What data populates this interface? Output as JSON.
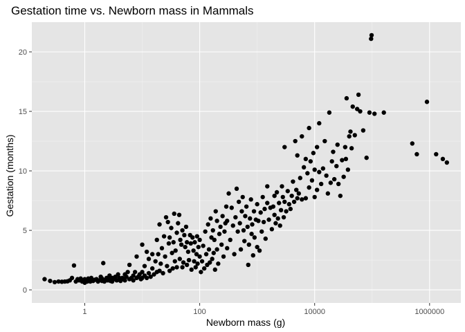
{
  "chart_data": {
    "type": "scatter",
    "title": "Gestation time vs. Newborn mass in Mammals",
    "xlabel": "Newborn mass (g)",
    "ylabel": "Gestation (months)",
    "x_scale": "log10",
    "xlim": [
      0.12,
      3500000
    ],
    "ylim": [
      -1.1,
      22.5
    ],
    "x_ticks": [
      {
        "value": 1,
        "label": "1"
      },
      {
        "value": 100,
        "label": "100"
      },
      {
        "value": 10000,
        "label": "10000"
      },
      {
        "value": 1000000,
        "label": "1000000"
      }
    ],
    "y_ticks": [
      {
        "value": 0,
        "label": "0"
      },
      {
        "value": 5,
        "label": "5"
      },
      {
        "value": 10,
        "label": "10"
      },
      {
        "value": 15,
        "label": "15"
      },
      {
        "value": 20,
        "label": "20"
      }
    ],
    "grid": true,
    "colors": {
      "panel": "#e5e5e5",
      "grid_major": "#ffffff",
      "grid_minor": "#f2f2f2",
      "point": "#000000"
    },
    "points": [
      [
        0.2,
        0.9
      ],
      [
        0.25,
        0.75
      ],
      [
        0.3,
        0.65
      ],
      [
        0.35,
        0.7
      ],
      [
        0.4,
        0.68
      ],
      [
        0.45,
        0.7
      ],
      [
        0.5,
        0.72
      ],
      [
        0.55,
        0.8
      ],
      [
        0.6,
        1.0
      ],
      [
        0.65,
        2.05
      ],
      [
        0.7,
        0.7
      ],
      [
        0.75,
        0.9
      ],
      [
        0.8,
        0.8
      ],
      [
        0.85,
        0.95
      ],
      [
        0.9,
        0.7
      ],
      [
        0.95,
        0.75
      ],
      [
        1.0,
        0.6
      ],
      [
        1.0,
        0.9
      ],
      [
        1.05,
        0.8
      ],
      [
        1.1,
        0.7
      ],
      [
        1.15,
        0.95
      ],
      [
        1.2,
        0.85
      ],
      [
        1.25,
        0.7
      ],
      [
        1.3,
        1.0
      ],
      [
        1.4,
        0.75
      ],
      [
        1.5,
        0.85
      ],
      [
        1.6,
        0.9
      ],
      [
        1.7,
        0.7
      ],
      [
        1.8,
        0.8
      ],
      [
        1.9,
        1.1
      ],
      [
        2.0,
        0.75
      ],
      [
        2.0,
        0.95
      ],
      [
        2.1,
        2.25
      ],
      [
        2.2,
        0.7
      ],
      [
        2.3,
        0.85
      ],
      [
        2.4,
        1.0
      ],
      [
        2.5,
        0.8
      ],
      [
        2.6,
        0.9
      ],
      [
        2.7,
        1.2
      ],
      [
        2.8,
        0.75
      ],
      [
        2.9,
        0.85
      ],
      [
        3.0,
        1.0
      ],
      [
        3.0,
        0.7
      ],
      [
        3.2,
        0.9
      ],
      [
        3.4,
        1.1
      ],
      [
        3.6,
        0.8
      ],
      [
        3.8,
        1.3
      ],
      [
        4.0,
        0.85
      ],
      [
        4.0,
        1.0
      ],
      [
        4.2,
        0.75
      ],
      [
        4.5,
        1.0
      ],
      [
        4.8,
        0.9
      ],
      [
        5.0,
        1.3
      ],
      [
        5.0,
        0.8
      ],
      [
        5.3,
        1.1
      ],
      [
        5.6,
        1.5
      ],
      [
        6.0,
        0.9
      ],
      [
        6.0,
        2.1
      ],
      [
        6.5,
        1.0
      ],
      [
        7.0,
        1.2
      ],
      [
        7.0,
        0.8
      ],
      [
        7.5,
        1.5
      ],
      [
        8.0,
        1.0
      ],
      [
        8.0,
        2.8
      ],
      [
        8.5,
        1.1
      ],
      [
        9.0,
        1.3
      ],
      [
        9.5,
        0.9
      ],
      [
        10,
        1.5
      ],
      [
        10,
        3.8
      ],
      [
        10,
        1.0
      ],
      [
        11,
        1.2
      ],
      [
        11,
        2.0
      ],
      [
        12,
        1.0
      ],
      [
        12,
        3.2
      ],
      [
        13,
        1.4
      ],
      [
        13,
        2.6
      ],
      [
        14,
        1.1
      ],
      [
        15,
        1.8
      ],
      [
        15,
        3.0
      ],
      [
        16,
        1.3
      ],
      [
        17,
        2.4
      ],
      [
        18,
        1.5
      ],
      [
        18,
        4.2
      ],
      [
        19,
        3.0
      ],
      [
        20,
        5.5
      ],
      [
        20,
        1.6
      ],
      [
        21,
        2.2
      ],
      [
        22,
        3.5
      ],
      [
        23,
        1.4
      ],
      [
        24,
        4.5
      ],
      [
        25,
        2.8
      ],
      [
        26,
        6.1
      ],
      [
        27,
        2.0
      ],
      [
        28,
        5.7
      ],
      [
        29,
        3.9
      ],
      [
        30,
        1.6
      ],
      [
        30,
        4.4
      ],
      [
        32,
        5.2
      ],
      [
        33,
        3.1
      ],
      [
        34,
        1.8
      ],
      [
        35,
        4.0
      ],
      [
        36,
        6.4
      ],
      [
        37,
        2.4
      ],
      [
        38,
        3.3
      ],
      [
        40,
        4.8
      ],
      [
        40,
        1.9
      ],
      [
        42,
        5.6
      ],
      [
        44,
        6.3
      ],
      [
        45,
        2.6
      ],
      [
        46,
        4.2
      ],
      [
        48,
        3.8
      ],
      [
        50,
        5.0
      ],
      [
        50,
        1.9
      ],
      [
        52,
        2.3
      ],
      [
        54,
        4.6
      ],
      [
        56,
        3.6
      ],
      [
        58,
        5.3
      ],
      [
        60,
        2.1
      ],
      [
        60,
        4.0
      ],
      [
        63,
        3.2
      ],
      [
        65,
        2.5
      ],
      [
        68,
        4.6
      ],
      [
        70,
        3.9
      ],
      [
        72,
        1.7
      ],
      [
        75,
        4.4
      ],
      [
        78,
        3.3
      ],
      [
        80,
        2.4
      ],
      [
        82,
        4.0
      ],
      [
        85,
        1.9
      ],
      [
        88,
        3.0
      ],
      [
        90,
        4.5
      ],
      [
        92,
        2.2
      ],
      [
        95,
        3.6
      ],
      [
        100,
        2.8
      ],
      [
        100,
        4.2
      ],
      [
        105,
        1.5
      ],
      [
        110,
        2.4
      ],
      [
        115,
        3.7
      ],
      [
        120,
        1.8
      ],
      [
        125,
        4.9
      ],
      [
        130,
        3.0
      ],
      [
        135,
        2.1
      ],
      [
        140,
        5.5
      ],
      [
        145,
        3.4
      ],
      [
        150,
        2.3
      ],
      [
        155,
        6.0
      ],
      [
        160,
        4.4
      ],
      [
        165,
        2.6
      ],
      [
        170,
        5.0
      ],
      [
        175,
        3.1
      ],
      [
        180,
        4.2
      ],
      [
        185,
        1.7
      ],
      [
        190,
        6.6
      ],
      [
        200,
        3.4
      ],
      [
        200,
        5.8
      ],
      [
        210,
        2.2
      ],
      [
        220,
        4.7
      ],
      [
        230,
        5.3
      ],
      [
        240,
        3.8
      ],
      [
        250,
        6.2
      ],
      [
        260,
        2.8
      ],
      [
        270,
        4.9
      ],
      [
        280,
        5.6
      ],
      [
        290,
        7.0
      ],
      [
        300,
        3.5
      ],
      [
        300,
        5.8
      ],
      [
        320,
        8.1
      ],
      [
        340,
        4.2
      ],
      [
        360,
        6.9
      ],
      [
        380,
        5.4
      ],
      [
        400,
        3.0
      ],
      [
        420,
        6.1
      ],
      [
        440,
        8.5
      ],
      [
        460,
        4.9
      ],
      [
        480,
        7.4
      ],
      [
        500,
        5.6
      ],
      [
        520,
        3.4
      ],
      [
        540,
        6.6
      ],
      [
        560,
        7.8
      ],
      [
        580,
        5.0
      ],
      [
        600,
        4.1
      ],
      [
        620,
        6.2
      ],
      [
        650,
        7.0
      ],
      [
        680,
        5.3
      ],
      [
        700,
        2.1
      ],
      [
        720,
        3.8
      ],
      [
        750,
        6.0
      ],
      [
        780,
        7.6
      ],
      [
        800,
        4.7
      ],
      [
        820,
        5.5
      ],
      [
        850,
        2.9
      ],
      [
        880,
        6.6
      ],
      [
        900,
        4.4
      ],
      [
        950,
        5.9
      ],
      [
        1000,
        3.6
      ],
      [
        1000,
        7.2
      ],
      [
        1050,
        5.8
      ],
      [
        1100,
        3.3
      ],
      [
        1150,
        6.5
      ],
      [
        1200,
        4.9
      ],
      [
        1250,
        7.8
      ],
      [
        1300,
        5.7
      ],
      [
        1350,
        6.8
      ],
      [
        1400,
        4.3
      ],
      [
        1500,
        7.3
      ],
      [
        1500,
        8.7
      ],
      [
        1600,
        5.9
      ],
      [
        1700,
        6.9
      ],
      [
        1800,
        5.1
      ],
      [
        1900,
        7.0
      ],
      [
        2000,
        6.3
      ],
      [
        2000,
        7.9
      ],
      [
        2100,
        5.6
      ],
      [
        2200,
        8.2
      ],
      [
        2300,
        6.0
      ],
      [
        2400,
        7.3
      ],
      [
        2500,
        5.4
      ],
      [
        2600,
        6.7
      ],
      [
        2700,
        8.7
      ],
      [
        2800,
        7.8
      ],
      [
        2900,
        6.1
      ],
      [
        3000,
        7.4
      ],
      [
        3000,
        12.0
      ],
      [
        3200,
        6.6
      ],
      [
        3400,
        8.3
      ],
      [
        3600,
        7.2
      ],
      [
        3800,
        6.8
      ],
      [
        4000,
        7.9
      ],
      [
        4200,
        9.1
      ],
      [
        4400,
        7.4
      ],
      [
        4600,
        12.5
      ],
      [
        4800,
        8.4
      ],
      [
        5000,
        7.7
      ],
      [
        5000,
        11.3
      ],
      [
        5300,
        8.1
      ],
      [
        5600,
        9.4
      ],
      [
        6000,
        7.6
      ],
      [
        6000,
        12.9
      ],
      [
        6500,
        10.3
      ],
      [
        7000,
        11.0
      ],
      [
        7000,
        7.7
      ],
      [
        7500,
        9.8
      ],
      [
        8000,
        8.6
      ],
      [
        8000,
        13.6
      ],
      [
        8500,
        10.8
      ],
      [
        9000,
        9.2
      ],
      [
        9500,
        11.5
      ],
      [
        10000,
        7.8
      ],
      [
        10000,
        10.1
      ],
      [
        11000,
        12.0
      ],
      [
        11000,
        8.4
      ],
      [
        12000,
        9.9
      ],
      [
        12000,
        14.0
      ],
      [
        13000,
        8.9
      ],
      [
        14000,
        10.2
      ],
      [
        15000,
        12.5
      ],
      [
        16000,
        9.6
      ],
      [
        17000,
        8.1
      ],
      [
        18000,
        14.9
      ],
      [
        19000,
        9.0
      ],
      [
        20000,
        10.8
      ],
      [
        21000,
        11.6
      ],
      [
        22000,
        9.3
      ],
      [
        24000,
        10.4
      ],
      [
        25000,
        12.2
      ],
      [
        26000,
        8.9
      ],
      [
        28000,
        7.9
      ],
      [
        30000,
        10.9
      ],
      [
        32000,
        9.5
      ],
      [
        34000,
        12.0
      ],
      [
        35000,
        11.0
      ],
      [
        36000,
        16.1
      ],
      [
        38000,
        10.1
      ],
      [
        40000,
        12.9
      ],
      [
        42000,
        13.3
      ],
      [
        44000,
        11.9
      ],
      [
        46000,
        15.4
      ],
      [
        50000,
        13.0
      ],
      [
        55000,
        15.2
      ],
      [
        58000,
        16.4
      ],
      [
        62000,
        15.0
      ],
      [
        70000,
        13.4
      ],
      [
        80000,
        11.1
      ],
      [
        90000,
        14.9
      ],
      [
        96000,
        21.1
      ],
      [
        98000,
        21.4
      ],
      [
        110000,
        14.8
      ],
      [
        160000,
        14.9
      ],
      [
        500000,
        12.3
      ],
      [
        600000,
        11.4
      ],
      [
        900000,
        15.8
      ],
      [
        1300000,
        11.4
      ],
      [
        1700000,
        11.0
      ],
      [
        2000000,
        10.7
      ]
    ]
  }
}
